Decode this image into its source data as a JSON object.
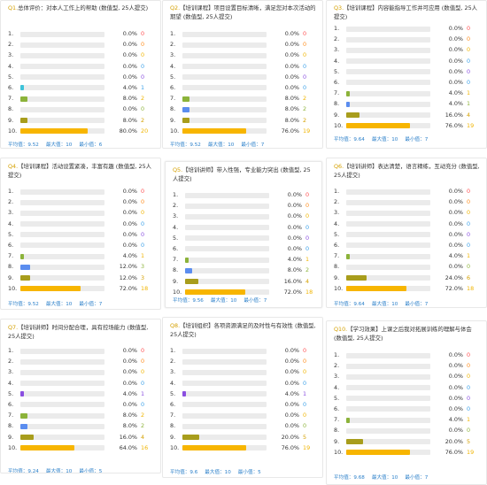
{
  "colors": {
    "bar_1_5": "#cfcfcf",
    "bar_6": "#3ec3d9",
    "bar_7": "#8cb33a",
    "bar_8": "#5b8def",
    "bar_9": "#a89d1c",
    "bar_10": "#f7b500",
    "count_colors": [
      "#ff4d4f",
      "#ff8c1a",
      "#f0b400",
      "#3aa0e8",
      "#8a4fe0",
      "#3aa0e8",
      "#f0b400",
      "#8cb33a",
      "#d4a000",
      "#f0b400"
    ]
  },
  "cards": [
    {
      "qn": "Q1.",
      "title": "总体评价：对本人工作上的帮助 (数值型, 25人提交)",
      "rows": [
        [
          "1.",
          "0.0%",
          "0"
        ],
        [
          "2.",
          "0.0%",
          "0"
        ],
        [
          "3.",
          "0.0%",
          "0"
        ],
        [
          "4.",
          "0.0%",
          "0"
        ],
        [
          "5.",
          "0.0%",
          "0"
        ],
        [
          "6.",
          "4.0%",
          "1"
        ],
        [
          "7.",
          "8.0%",
          "2"
        ],
        [
          "8.",
          "0.0%",
          "0"
        ],
        [
          "9.",
          "8.0%",
          "2"
        ],
        [
          "10.",
          "80.0%",
          "20"
        ]
      ],
      "fills": [
        0,
        0,
        0,
        0,
        0,
        0.04,
        0.08,
        0,
        0.08,
        0.8
      ],
      "avg": "平均值：9.52",
      "max": "最大值：10",
      "min": "最小值：6"
    },
    {
      "qn": "Q2.",
      "title": "【培训课程】项目设置目标清晰，满足您对本次活动的期望 (数值型, 25人提交)",
      "rows": [
        [
          "1.",
          "0.0%",
          "0"
        ],
        [
          "2.",
          "0.0%",
          "0"
        ],
        [
          "3.",
          "0.0%",
          "0"
        ],
        [
          "4.",
          "0.0%",
          "0"
        ],
        [
          "5.",
          "0.0%",
          "0"
        ],
        [
          "6.",
          "0.0%",
          "0"
        ],
        [
          "7.",
          "8.0%",
          "2"
        ],
        [
          "8.",
          "8.0%",
          "2"
        ],
        [
          "9.",
          "8.0%",
          "2"
        ],
        [
          "10.",
          "76.0%",
          "19"
        ]
      ],
      "fills": [
        0,
        0,
        0,
        0,
        0,
        0,
        0.08,
        0.08,
        0.08,
        0.76
      ],
      "avg": "平均值：9.52",
      "max": "最大值：10",
      "min": "最小值：7"
    },
    {
      "qn": "Q3.",
      "title": "【培训课程】内容能指导工作并可应用 (数值型, 25人提交)",
      "rows": [
        [
          "1.",
          "0.0%",
          "0"
        ],
        [
          "2.",
          "0.0%",
          "0"
        ],
        [
          "3.",
          "0.0%",
          "0"
        ],
        [
          "4.",
          "0.0%",
          "0"
        ],
        [
          "5.",
          "0.0%",
          "0"
        ],
        [
          "6.",
          "0.0%",
          "0"
        ],
        [
          "7.",
          "4.0%",
          "1"
        ],
        [
          "8.",
          "4.0%",
          "1"
        ],
        [
          "9.",
          "16.0%",
          "4"
        ],
        [
          "10.",
          "76.0%",
          "19"
        ]
      ],
      "fills": [
        0,
        0,
        0,
        0,
        0,
        0,
        0.04,
        0.04,
        0.16,
        0.76
      ],
      "avg": "平均值：9.64",
      "max": "最大值：10",
      "min": "最小值：7"
    },
    {
      "qn": "Q4.",
      "title": "【培训课程】活动设置紧凑，丰富有趣 (数值型, 25人提交)",
      "rows": [
        [
          "1.",
          "0.0%",
          "0"
        ],
        [
          "2.",
          "0.0%",
          "0"
        ],
        [
          "3.",
          "0.0%",
          "0"
        ],
        [
          "4.",
          "0.0%",
          "0"
        ],
        [
          "5.",
          "0.0%",
          "0"
        ],
        [
          "6.",
          "0.0%",
          "0"
        ],
        [
          "7.",
          "4.0%",
          "1"
        ],
        [
          "8.",
          "12.0%",
          "3"
        ],
        [
          "9.",
          "12.0%",
          "3"
        ],
        [
          "10.",
          "72.0%",
          "18"
        ]
      ],
      "fills": [
        0,
        0,
        0,
        0,
        0,
        0,
        0.04,
        0.12,
        0.12,
        0.72
      ],
      "avg": "平均值：9.52",
      "max": "最大值：10",
      "min": "最小值：7"
    },
    {
      "qn": "Q5.",
      "title": "【培训讲师】带入性强，专业能力突出 (数值型, 25人提交)",
      "rows": [
        [
          "1.",
          "0.0%",
          "0"
        ],
        [
          "2.",
          "0.0%",
          "0"
        ],
        [
          "3.",
          "0.0%",
          "0"
        ],
        [
          "4.",
          "0.0%",
          "0"
        ],
        [
          "5.",
          "0.0%",
          "0"
        ],
        [
          "6.",
          "0.0%",
          "0"
        ],
        [
          "7.",
          "4.0%",
          "1"
        ],
        [
          "8.",
          "8.0%",
          "2"
        ],
        [
          "9.",
          "16.0%",
          "4"
        ],
        [
          "10.",
          "72.0%",
          "18"
        ]
      ],
      "fills": [
        0,
        0,
        0,
        0,
        0,
        0,
        0.04,
        0.08,
        0.16,
        0.72
      ],
      "avg": "平均值：9.56",
      "max": "最大值：10",
      "min": "最小值：7"
    },
    {
      "qn": "Q6.",
      "title": "【培训讲师】表达清楚，语言精练，互动充分 (数值型, 25人提交)",
      "rows": [
        [
          "1.",
          "0.0%",
          "0"
        ],
        [
          "2.",
          "0.0%",
          "0"
        ],
        [
          "3.",
          "0.0%",
          "0"
        ],
        [
          "4.",
          "0.0%",
          "0"
        ],
        [
          "5.",
          "0.0%",
          "0"
        ],
        [
          "6.",
          "0.0%",
          "0"
        ],
        [
          "7.",
          "4.0%",
          "1"
        ],
        [
          "8.",
          "0.0%",
          "0"
        ],
        [
          "9.",
          "24.0%",
          "6"
        ],
        [
          "10.",
          "72.0%",
          "18"
        ]
      ],
      "fills": [
        0,
        0,
        0,
        0,
        0,
        0,
        0.04,
        0,
        0.24,
        0.72
      ],
      "avg": "平均值：9.64",
      "max": "最大值：10",
      "min": "最小值：7"
    },
    {
      "qn": "Q7.",
      "title": "【培训讲师】时间分配合理，具有控场能力 (数值型, 25人提交)",
      "rows": [
        [
          "1.",
          "0.0%",
          "0"
        ],
        [
          "2.",
          "0.0%",
          "0"
        ],
        [
          "3.",
          "0.0%",
          "0"
        ],
        [
          "4.",
          "0.0%",
          "0"
        ],
        [
          "5.",
          "4.0%",
          "1"
        ],
        [
          "6.",
          "0.0%",
          "0"
        ],
        [
          "7.",
          "8.0%",
          "2"
        ],
        [
          "8.",
          "8.0%",
          "2"
        ],
        [
          "9.",
          "16.0%",
          "4"
        ],
        [
          "10.",
          "64.0%",
          "16"
        ]
      ],
      "fills": [
        0,
        0,
        0,
        0,
        0.04,
        0,
        0.08,
        0.08,
        0.16,
        0.64
      ],
      "avg": "平均值：9.24",
      "max": "最大值：10",
      "min": "最小值：5"
    },
    {
      "qn": "Q8.",
      "title": "【培训组织】各项资源满足的及时性与有效性 (数值型, 25人提交)",
      "rows": [
        [
          "1.",
          "0.0%",
          "0"
        ],
        [
          "2.",
          "0.0%",
          "0"
        ],
        [
          "3.",
          "0.0%",
          "0"
        ],
        [
          "4.",
          "0.0%",
          "0"
        ],
        [
          "5.",
          "4.0%",
          "1"
        ],
        [
          "6.",
          "0.0%",
          "0"
        ],
        [
          "7.",
          "0.0%",
          "0"
        ],
        [
          "8.",
          "0.0%",
          "0"
        ],
        [
          "9.",
          "20.0%",
          "5"
        ],
        [
          "10.",
          "76.0%",
          "19"
        ]
      ],
      "fills": [
        0,
        0,
        0,
        0,
        0.04,
        0,
        0,
        0,
        0.2,
        0.76
      ],
      "avg": "平均值：9.6",
      "max": "最大值：10",
      "min": "最小值：5"
    },
    {
      "qn": "Q10.",
      "title": "【学习效果】上课之后我对拓展训练的理解与体会 (数值型, 25人提交)",
      "rows": [
        [
          "1.",
          "0.0%",
          "0"
        ],
        [
          "2.",
          "0.0%",
          "0"
        ],
        [
          "3.",
          "0.0%",
          "0"
        ],
        [
          "4.",
          "0.0%",
          "0"
        ],
        [
          "5.",
          "0.0%",
          "0"
        ],
        [
          "6.",
          "0.0%",
          "0"
        ],
        [
          "7.",
          "4.0%",
          "1"
        ],
        [
          "8.",
          "0.0%",
          "0"
        ],
        [
          "9.",
          "20.0%",
          "5"
        ],
        [
          "10.",
          "76.0%",
          "19"
        ]
      ],
      "fills": [
        0,
        0,
        0,
        0,
        0,
        0,
        0.04,
        0,
        0.2,
        0.76
      ],
      "avg": "平均值：9.68",
      "max": "最大值：10",
      "min": "最小值：7"
    }
  ]
}
